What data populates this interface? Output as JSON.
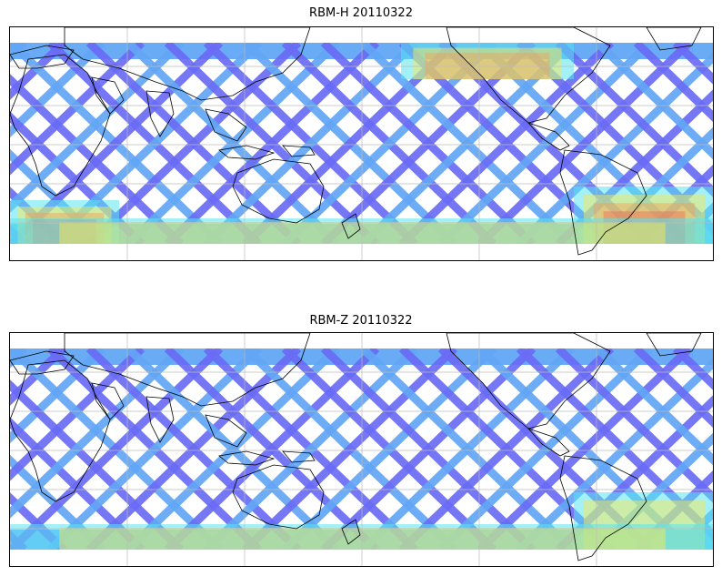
{
  "panels": [
    {
      "title": "RBM-H 20110322",
      "colormap": "jet",
      "hot_zones": [
        {
          "region": "north-pacific",
          "level": 0.75
        },
        {
          "region": "south-atlantic",
          "level": 1.0
        },
        {
          "region": "south-indian",
          "level": 0.9
        },
        {
          "region": "southern-ocean",
          "level": 0.55
        }
      ]
    },
    {
      "title": "RBM-Z 20110322",
      "colormap": "jet",
      "hot_zones": [
        {
          "region": "south-atlantic",
          "level": 0.55
        },
        {
          "region": "southern-ocean",
          "level": 0.4
        }
      ]
    }
  ],
  "colors": {
    "swath_base": "#6a6cf5",
    "swath_light": "#62a6f5",
    "cyan": "#58e6f0",
    "yellow": "#f5e85a",
    "orange": "#f5a050",
    "red": "#f06050",
    "coastline": "#000000",
    "gridline": "#bbbbbb"
  }
}
